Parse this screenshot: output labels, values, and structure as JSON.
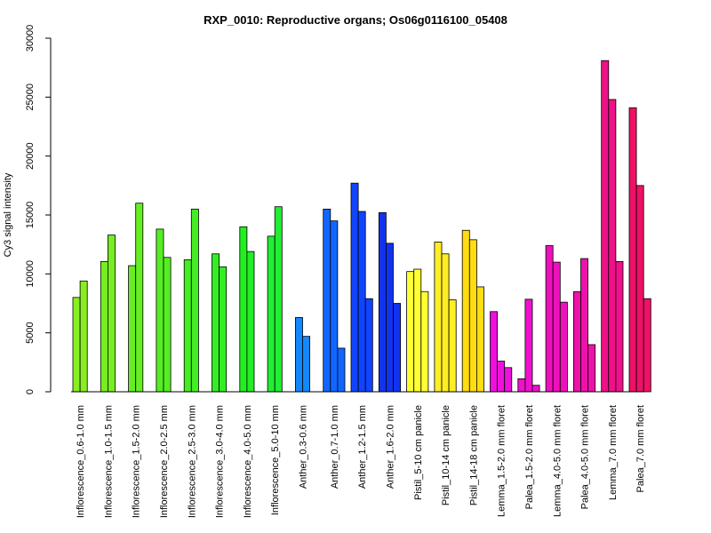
{
  "chart_data": {
    "type": "bar",
    "title": "RXP_0010: Reproductive organs; Os06g0116100_05408",
    "ylabel": "Cy3 signal intensity",
    "xlabel": "",
    "ylim": [
      0,
      30000
    ],
    "yticks": [
      0,
      5000,
      10000,
      15000,
      20000,
      25000,
      30000
    ],
    "grid": false,
    "groups": [
      {
        "label": "Inflorescence_0.6-1.0 mm",
        "color": "#88ee22",
        "values": [
          8000,
          9400
        ]
      },
      {
        "label": "Inflorescence_1.0-1.5 mm",
        "color": "#77ee22",
        "values": [
          11050,
          13300
        ]
      },
      {
        "label": "Inflorescence_1.5-2.0 mm",
        "color": "#66ee22",
        "values": [
          10700,
          16000
        ]
      },
      {
        "label": "Inflorescence_2.0-2.5 mm",
        "color": "#55ee22",
        "values": [
          13800,
          11400
        ]
      },
      {
        "label": "Inflorescence_2.5-3.0 mm",
        "color": "#44ee22",
        "values": [
          11200,
          15500
        ]
      },
      {
        "label": "Inflorescence_3.0-4.0 mm",
        "color": "#33ee22",
        "values": [
          11700,
          10600
        ]
      },
      {
        "label": "Inflorescence_4.0-5.0 mm",
        "color": "#22ee22",
        "values": [
          14000,
          11900
        ]
      },
      {
        "label": "Inflorescence_5.0-10 mm",
        "color": "#22ee33",
        "values": [
          13200,
          15700
        ]
      },
      {
        "label": "Anther_0.3-0.6 mm",
        "color": "#1188ff",
        "values": [
          6300,
          4700
        ]
      },
      {
        "label": "Anther_0.7-1.0 mm",
        "color": "#1166ff",
        "values": [
          15500,
          14500,
          3700
        ]
      },
      {
        "label": "Anther_1.2-1.5 mm",
        "color": "#1144ff",
        "values": [
          17700,
          15300,
          7900
        ]
      },
      {
        "label": "Anther_1.6-2.0 mm",
        "color": "#1133ee",
        "values": [
          15200,
          12600,
          7500
        ]
      },
      {
        "label": "Pistil_5-10 cm panicle",
        "color": "#ffff33",
        "values": [
          10200,
          10400,
          8500
        ]
      },
      {
        "label": "Pistil_10-14 cm panicle",
        "color": "#ffee22",
        "values": [
          12700,
          11700,
          7800
        ]
      },
      {
        "label": "Pistil_14-18 cm panicle",
        "color": "#ffdd11",
        "values": [
          13700,
          12900,
          8900
        ]
      },
      {
        "label": "Lemma_1.5-2.0 mm floret",
        "color": "#ee11dd",
        "values": [
          6800,
          2600,
          2050
        ]
      },
      {
        "label": "Palea_1.5-2.0 mm floret",
        "color": "#ee11cc",
        "values": [
          1100,
          7850,
          550
        ]
      },
      {
        "label": "Lemma_4.0-5.0 mm floret",
        "color": "#ee11bb",
        "values": [
          12400,
          11000,
          7600
        ]
      },
      {
        "label": "Palea_4.0-5.0 mm floret",
        "color": "#ee11aa",
        "values": [
          8500,
          11300,
          4000
        ]
      },
      {
        "label": "Lemma_7.0 mm floret",
        "color": "#ee1188",
        "values": [
          28100,
          24800,
          11050
        ]
      },
      {
        "label": "Palea_7.0 mm floret",
        "color": "#ee1166",
        "values": [
          24100,
          17500,
          7900
        ]
      }
    ]
  }
}
